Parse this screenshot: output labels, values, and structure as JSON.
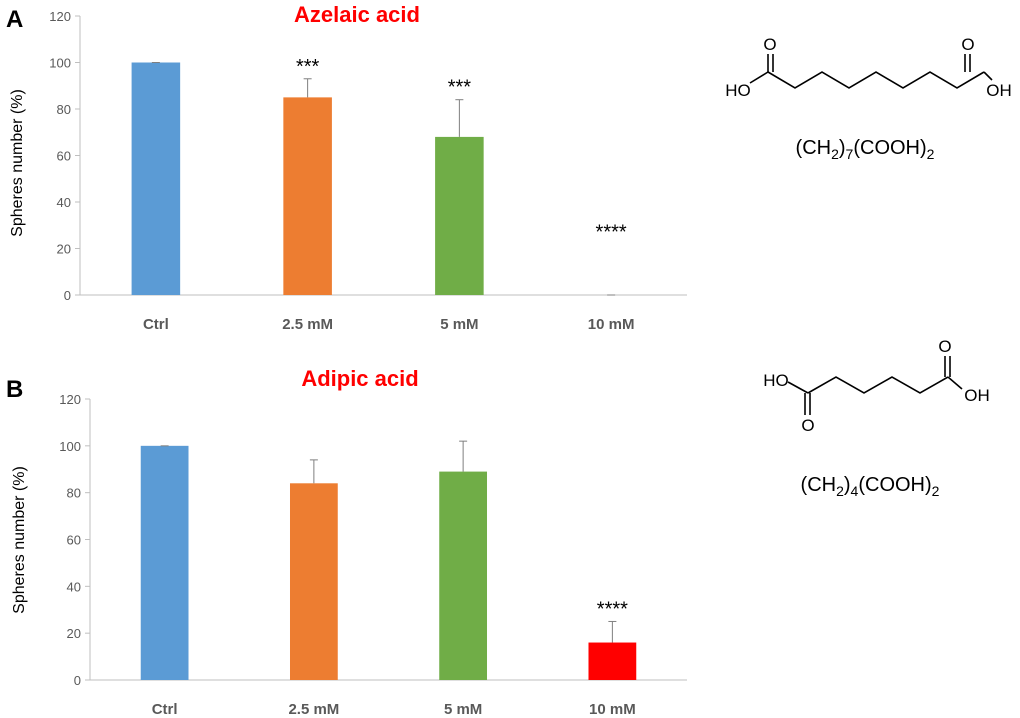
{
  "panels": [
    {
      "label": "A",
      "molecule": {
        "atoms": {
          "o_left": "O",
          "ho": "HO",
          "o_right": "O",
          "oh": "OH"
        },
        "formula": {
          "prefix": "(CH",
          "sub1": "2",
          "mid": ")",
          "sub2": "7",
          "mid2": "(COOH)",
          "sub3": "2"
        }
      }
    },
    {
      "label": "B",
      "molecule": {
        "atoms": {
          "ho": "HO",
          "o_bottom": "O",
          "o_top": "O",
          "oh": "OH"
        },
        "formula": {
          "prefix": "(CH",
          "sub1": "2",
          "mid": ")",
          "sub2": "4",
          "mid2": "(COOH)",
          "sub3": "2"
        }
      }
    }
  ],
  "chart_data": [
    {
      "type": "bar",
      "title": "Azelaic acid",
      "ylabel": "Spheres number (%)",
      "xlabel": "",
      "categories": [
        "Ctrl",
        "2.5 mM",
        "5 mM",
        "10 mM"
      ],
      "values": [
        100,
        85,
        68,
        0
      ],
      "errors": [
        0,
        8,
        16,
        0
      ],
      "significance": [
        "",
        "***",
        "***",
        "****"
      ],
      "colors": [
        "#5b9bd5",
        "#ed7d31",
        "#70ad47",
        "#ff0000"
      ],
      "ylim": [
        0,
        120
      ],
      "yticks": [
        0,
        20,
        40,
        60,
        80,
        100,
        120
      ],
      "grid": false,
      "legend": "none"
    },
    {
      "type": "bar",
      "title": "Adipic acid",
      "ylabel": "Spheres number (%)",
      "xlabel": "",
      "categories": [
        "Ctrl",
        "2.5 mM",
        "5 mM",
        "10 mM"
      ],
      "values": [
        100,
        84,
        89,
        16
      ],
      "errors": [
        0,
        10,
        13,
        9
      ],
      "significance": [
        "",
        "",
        "",
        "****"
      ],
      "colors": [
        "#5b9bd5",
        "#ed7d31",
        "#70ad47",
        "#ff0000"
      ],
      "ylim": [
        0,
        120
      ],
      "yticks": [
        0,
        20,
        40,
        60,
        80,
        100,
        120
      ],
      "grid": false,
      "legend": "none"
    }
  ]
}
